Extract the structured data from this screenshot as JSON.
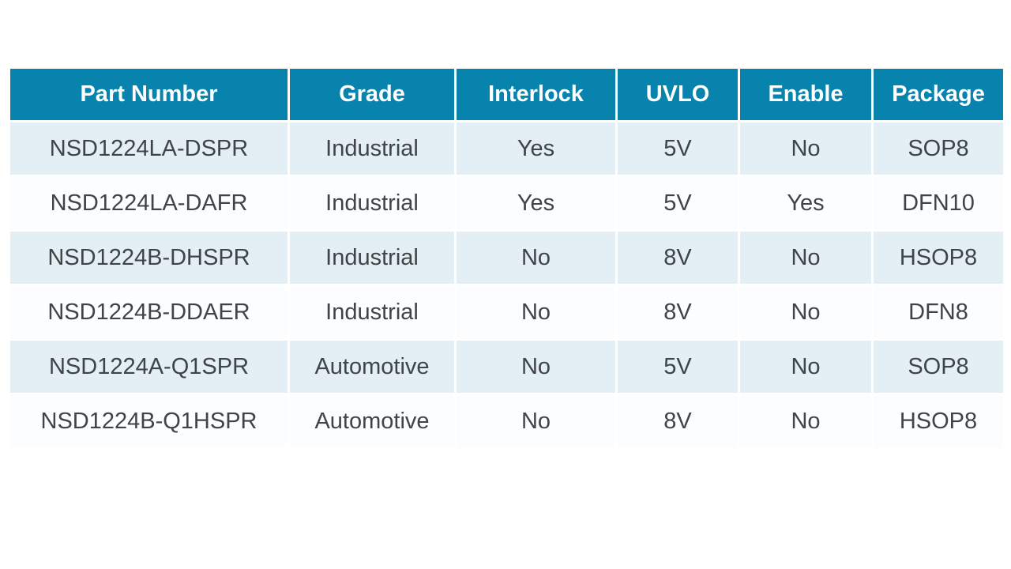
{
  "colors": {
    "header_bg": "#0883ad",
    "header_text": "#ffffff",
    "row_alt_bg": "#e3eef5",
    "row_bg": "#fbfdfe",
    "body_text": "#3f4447",
    "grid_line": "#ffffff"
  },
  "table": {
    "headers": [
      "Part Number",
      "Grade",
      "Interlock",
      "UVLO",
      "Enable",
      "Package"
    ],
    "rows": [
      [
        "NSD1224LA-DSPR",
        "Industrial",
        "Yes",
        "5V",
        "No",
        "SOP8"
      ],
      [
        "NSD1224LA-DAFR",
        "Industrial",
        "Yes",
        "5V",
        "Yes",
        "DFN10"
      ],
      [
        "NSD1224B-DHSPR",
        "Industrial",
        "No",
        "8V",
        "No",
        "HSOP8"
      ],
      [
        "NSD1224B-DDAER",
        "Industrial",
        "No",
        "8V",
        "No",
        "DFN8"
      ],
      [
        "NSD1224A-Q1SPR",
        "Automotive",
        "No",
        "5V",
        "No",
        "SOP8"
      ],
      [
        "NSD1224B-Q1HSPR",
        "Automotive",
        "No",
        "8V",
        "No",
        "HSOP8"
      ]
    ]
  }
}
